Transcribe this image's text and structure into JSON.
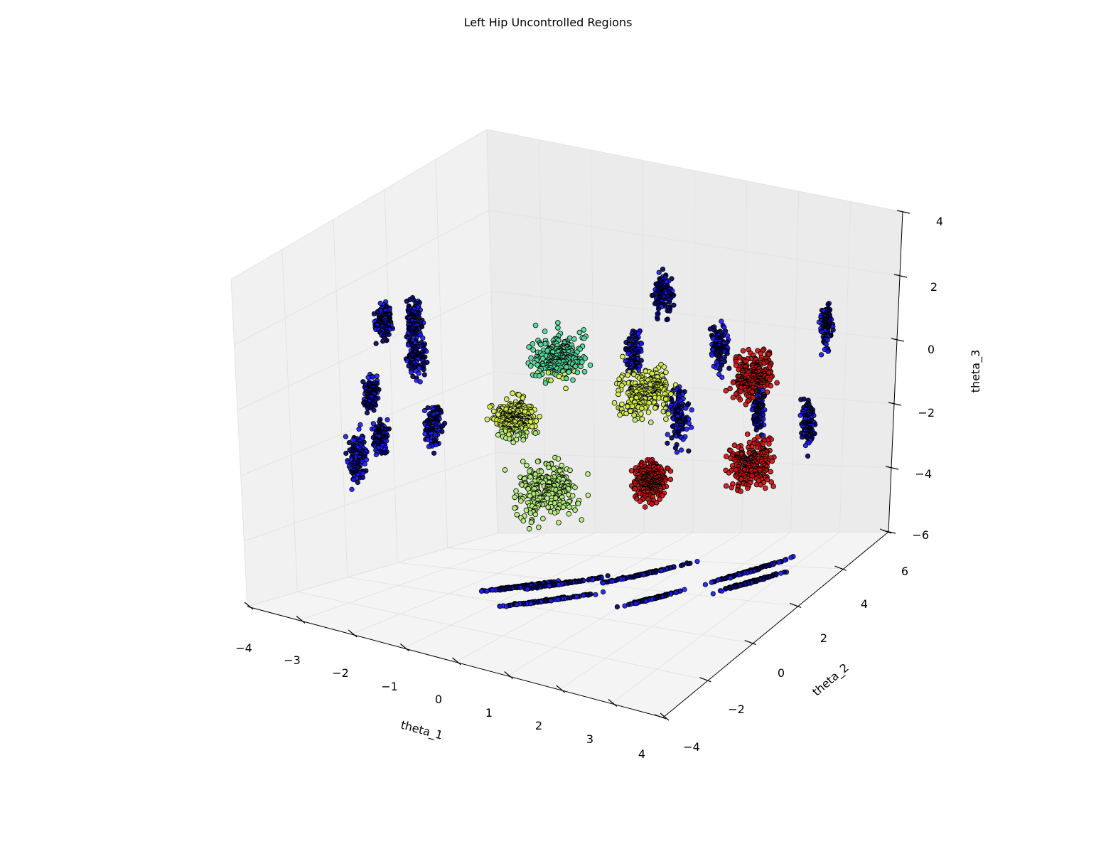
{
  "chart_data": {
    "type": "scatter",
    "title": "Left Hip Uncontrolled Regions",
    "xlabel": "theta_1",
    "ylabel": "theta_2",
    "zlabel": "theta_3",
    "xlim": [
      -4,
      4
    ],
    "ylim": [
      -4,
      6
    ],
    "zlim": [
      -6,
      4
    ],
    "x_ticks": [
      "−4",
      "−3",
      "−2",
      "−1",
      "0",
      "1",
      "2",
      "3",
      "4"
    ],
    "y_ticks": [
      "−4",
      "−2",
      "0",
      "2",
      "4",
      "6"
    ],
    "z_ticks": [
      "−6",
      "−4",
      "−2",
      "0",
      "2",
      "4"
    ],
    "grid": true,
    "colors": {
      "projection": "#1a1aff",
      "projection_dark": "#000060",
      "red_cluster": "#cc1111",
      "green_light": "#b4f07a",
      "green_mid": "#4fd89a",
      "yellow_green": "#d6f04a"
    },
    "clusters": [
      {
        "color": "red",
        "center": [
          2.6,
          3.0,
          0.2
        ],
        "spread": [
          0.35,
          0.5,
          1.0
        ]
      },
      {
        "color": "red",
        "center": [
          2.3,
          3.6,
          -2.8
        ],
        "spread": [
          0.4,
          0.6,
          1.0
        ]
      },
      {
        "color": "red",
        "center": [
          1.3,
          1.5,
          -2.5
        ],
        "spread": [
          0.3,
          0.5,
          0.8
        ]
      },
      {
        "color": "green",
        "center": [
          -0.6,
          1.8,
          0.5
        ],
        "spread": [
          0.5,
          0.6,
          0.9
        ]
      },
      {
        "color": "green",
        "center": [
          -0.3,
          0.6,
          -2.8
        ],
        "spread": [
          0.6,
          0.7,
          1.2
        ]
      },
      {
        "color": "green",
        "center": [
          0.5,
          3.0,
          -0.8
        ],
        "spread": [
          0.5,
          0.7,
          0.9
        ]
      },
      {
        "color": "green",
        "center": [
          -1.2,
          1.2,
          -1.2
        ],
        "spread": [
          0.4,
          0.5,
          0.8
        ]
      }
    ]
  }
}
